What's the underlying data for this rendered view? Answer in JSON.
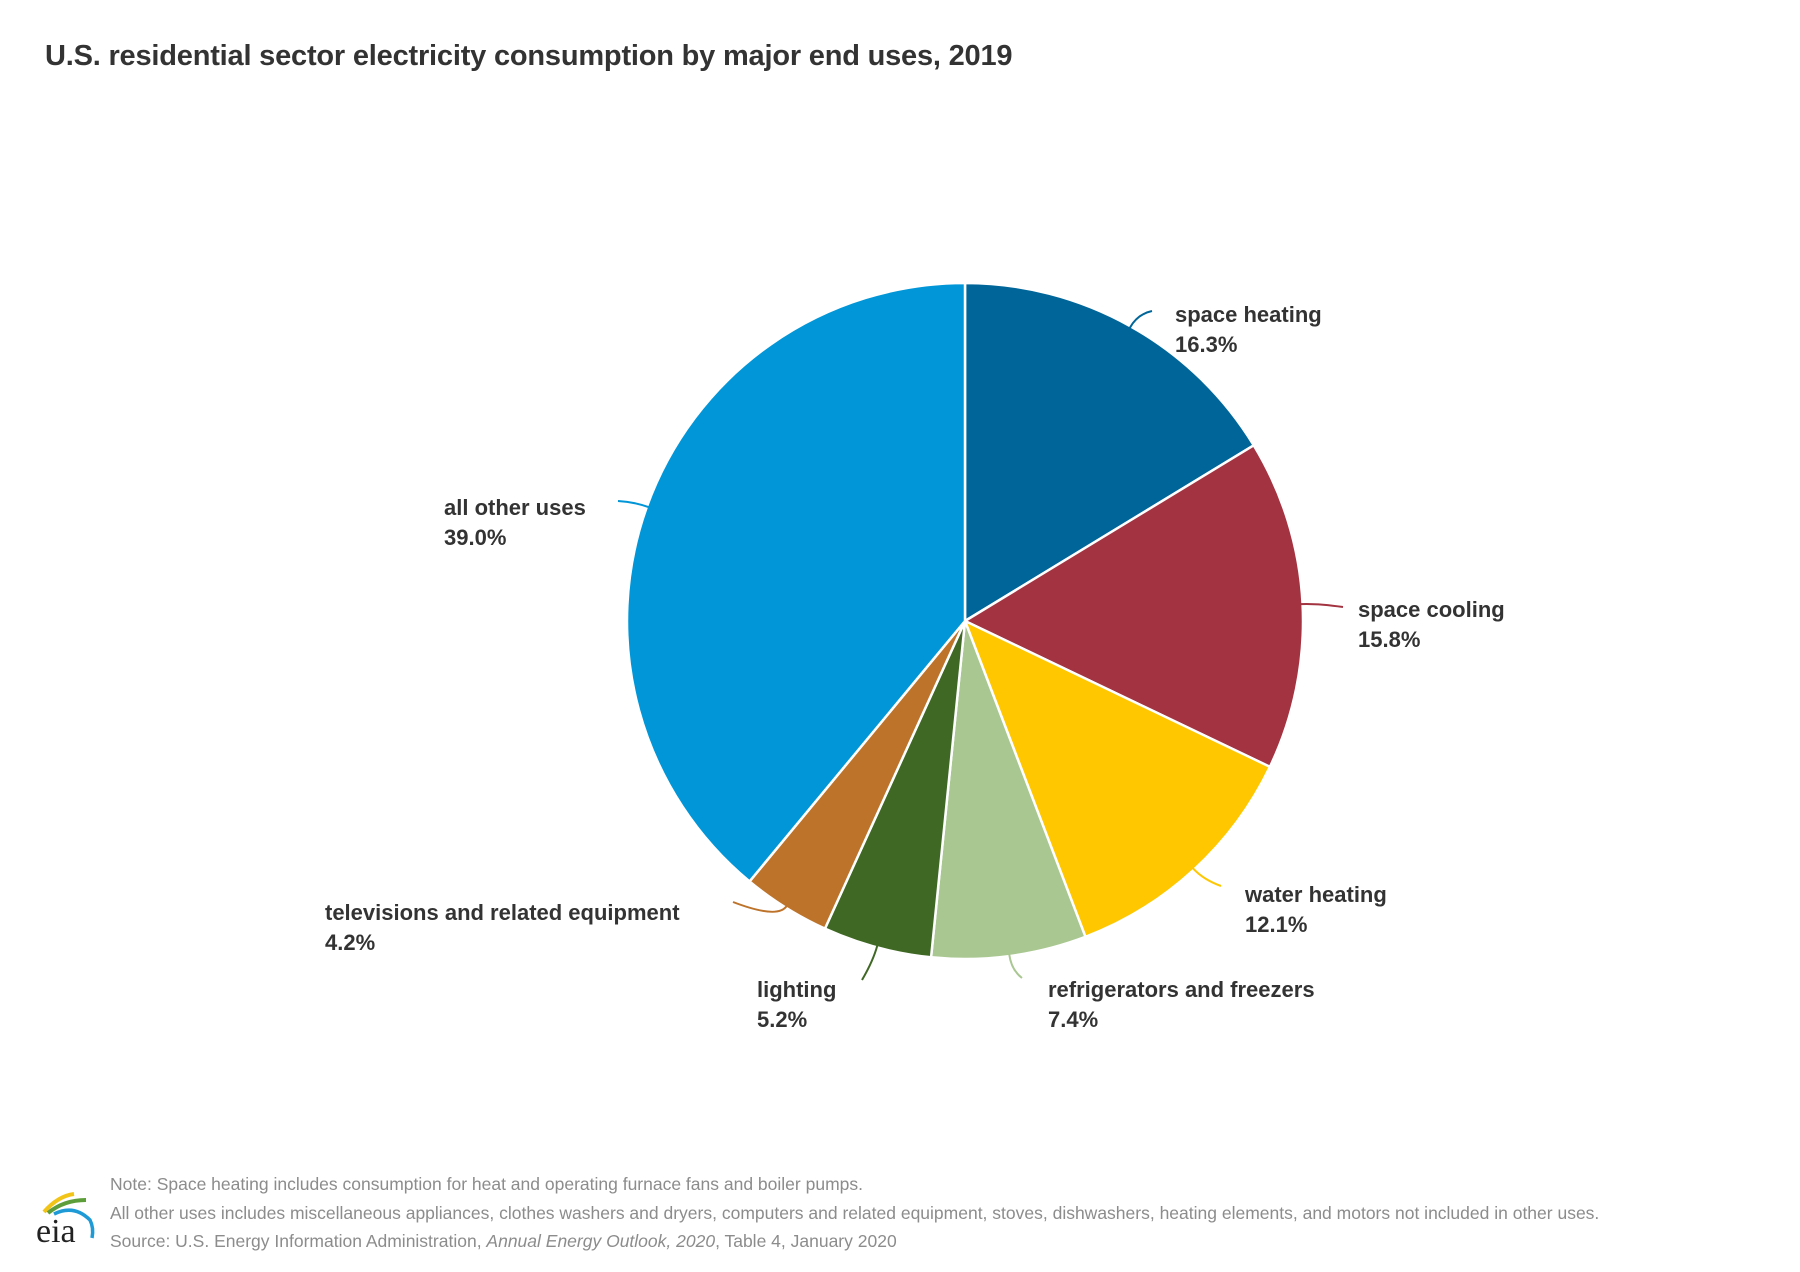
{
  "title": "U.S. residential sector electricity consumption by major end uses, 2019",
  "chart_data": {
    "type": "pie",
    "title": "U.S. residential sector electricity consumption by major end uses, 2019",
    "unit": "%",
    "start_angle": "12 o'clock",
    "direction": "clockwise",
    "slices": [
      {
        "label": "space heating",
        "value": 16.3,
        "display": "16.3%",
        "color": "#006699"
      },
      {
        "label": "space cooling",
        "value": 15.8,
        "display": "15.8%",
        "color": "#A33340"
      },
      {
        "label": "water heating",
        "value": 12.1,
        "display": "12.1%",
        "color": "#FFC700"
      },
      {
        "label": "refrigerators and freezers",
        "value": 7.4,
        "display": "7.4%",
        "color": "#A9C791"
      },
      {
        "label": "lighting",
        "value": 5.2,
        "display": "5.2%",
        "color": "#3F6824"
      },
      {
        "label": "televisions and related equipment",
        "value": 4.2,
        "display": "4.2%",
        "color": "#BD732A"
      },
      {
        "label": "all other uses",
        "value": 39.0,
        "display": "39.0%",
        "color": "#0096D7"
      }
    ]
  },
  "footer": {
    "note1": "Note: Space heating includes consumption for heat and operating furnace fans and boiler pumps.",
    "note2": "All other uses includes miscellaneous appliances, clothes washers and dryers, computers and related equipment, stoves, dishwashers, heating elements, and motors not included in other uses.",
    "source_prefix": "Source: U.S. Energy Information Administration, ",
    "source_pub": "Annual Energy Outlook, 2020",
    "source_suffix": ", Table 4, January 2020"
  },
  "logo": {
    "text": "eia"
  }
}
